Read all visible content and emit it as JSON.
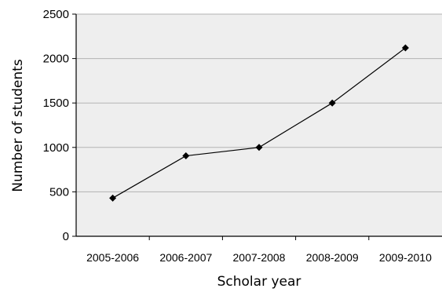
{
  "chart_data": {
    "type": "line",
    "categories": [
      "2005-2006",
      "2006-2007",
      "2007-2008",
      "2008-2009",
      "2009-2010"
    ],
    "series": [
      {
        "values": [
          430,
          905,
          1000,
          1500,
          2120
        ]
      }
    ],
    "xlabel": "Scholar year",
    "ylabel": "Number of students",
    "ylim": [
      0,
      2500
    ],
    "yticks": [
      0,
      500,
      1000,
      1500,
      2000,
      2500
    ],
    "grid": true,
    "marker": "diamond",
    "colors": {
      "line": "#000000",
      "grid": "#b3b3b3",
      "plot_background": "#eeeeee"
    }
  }
}
